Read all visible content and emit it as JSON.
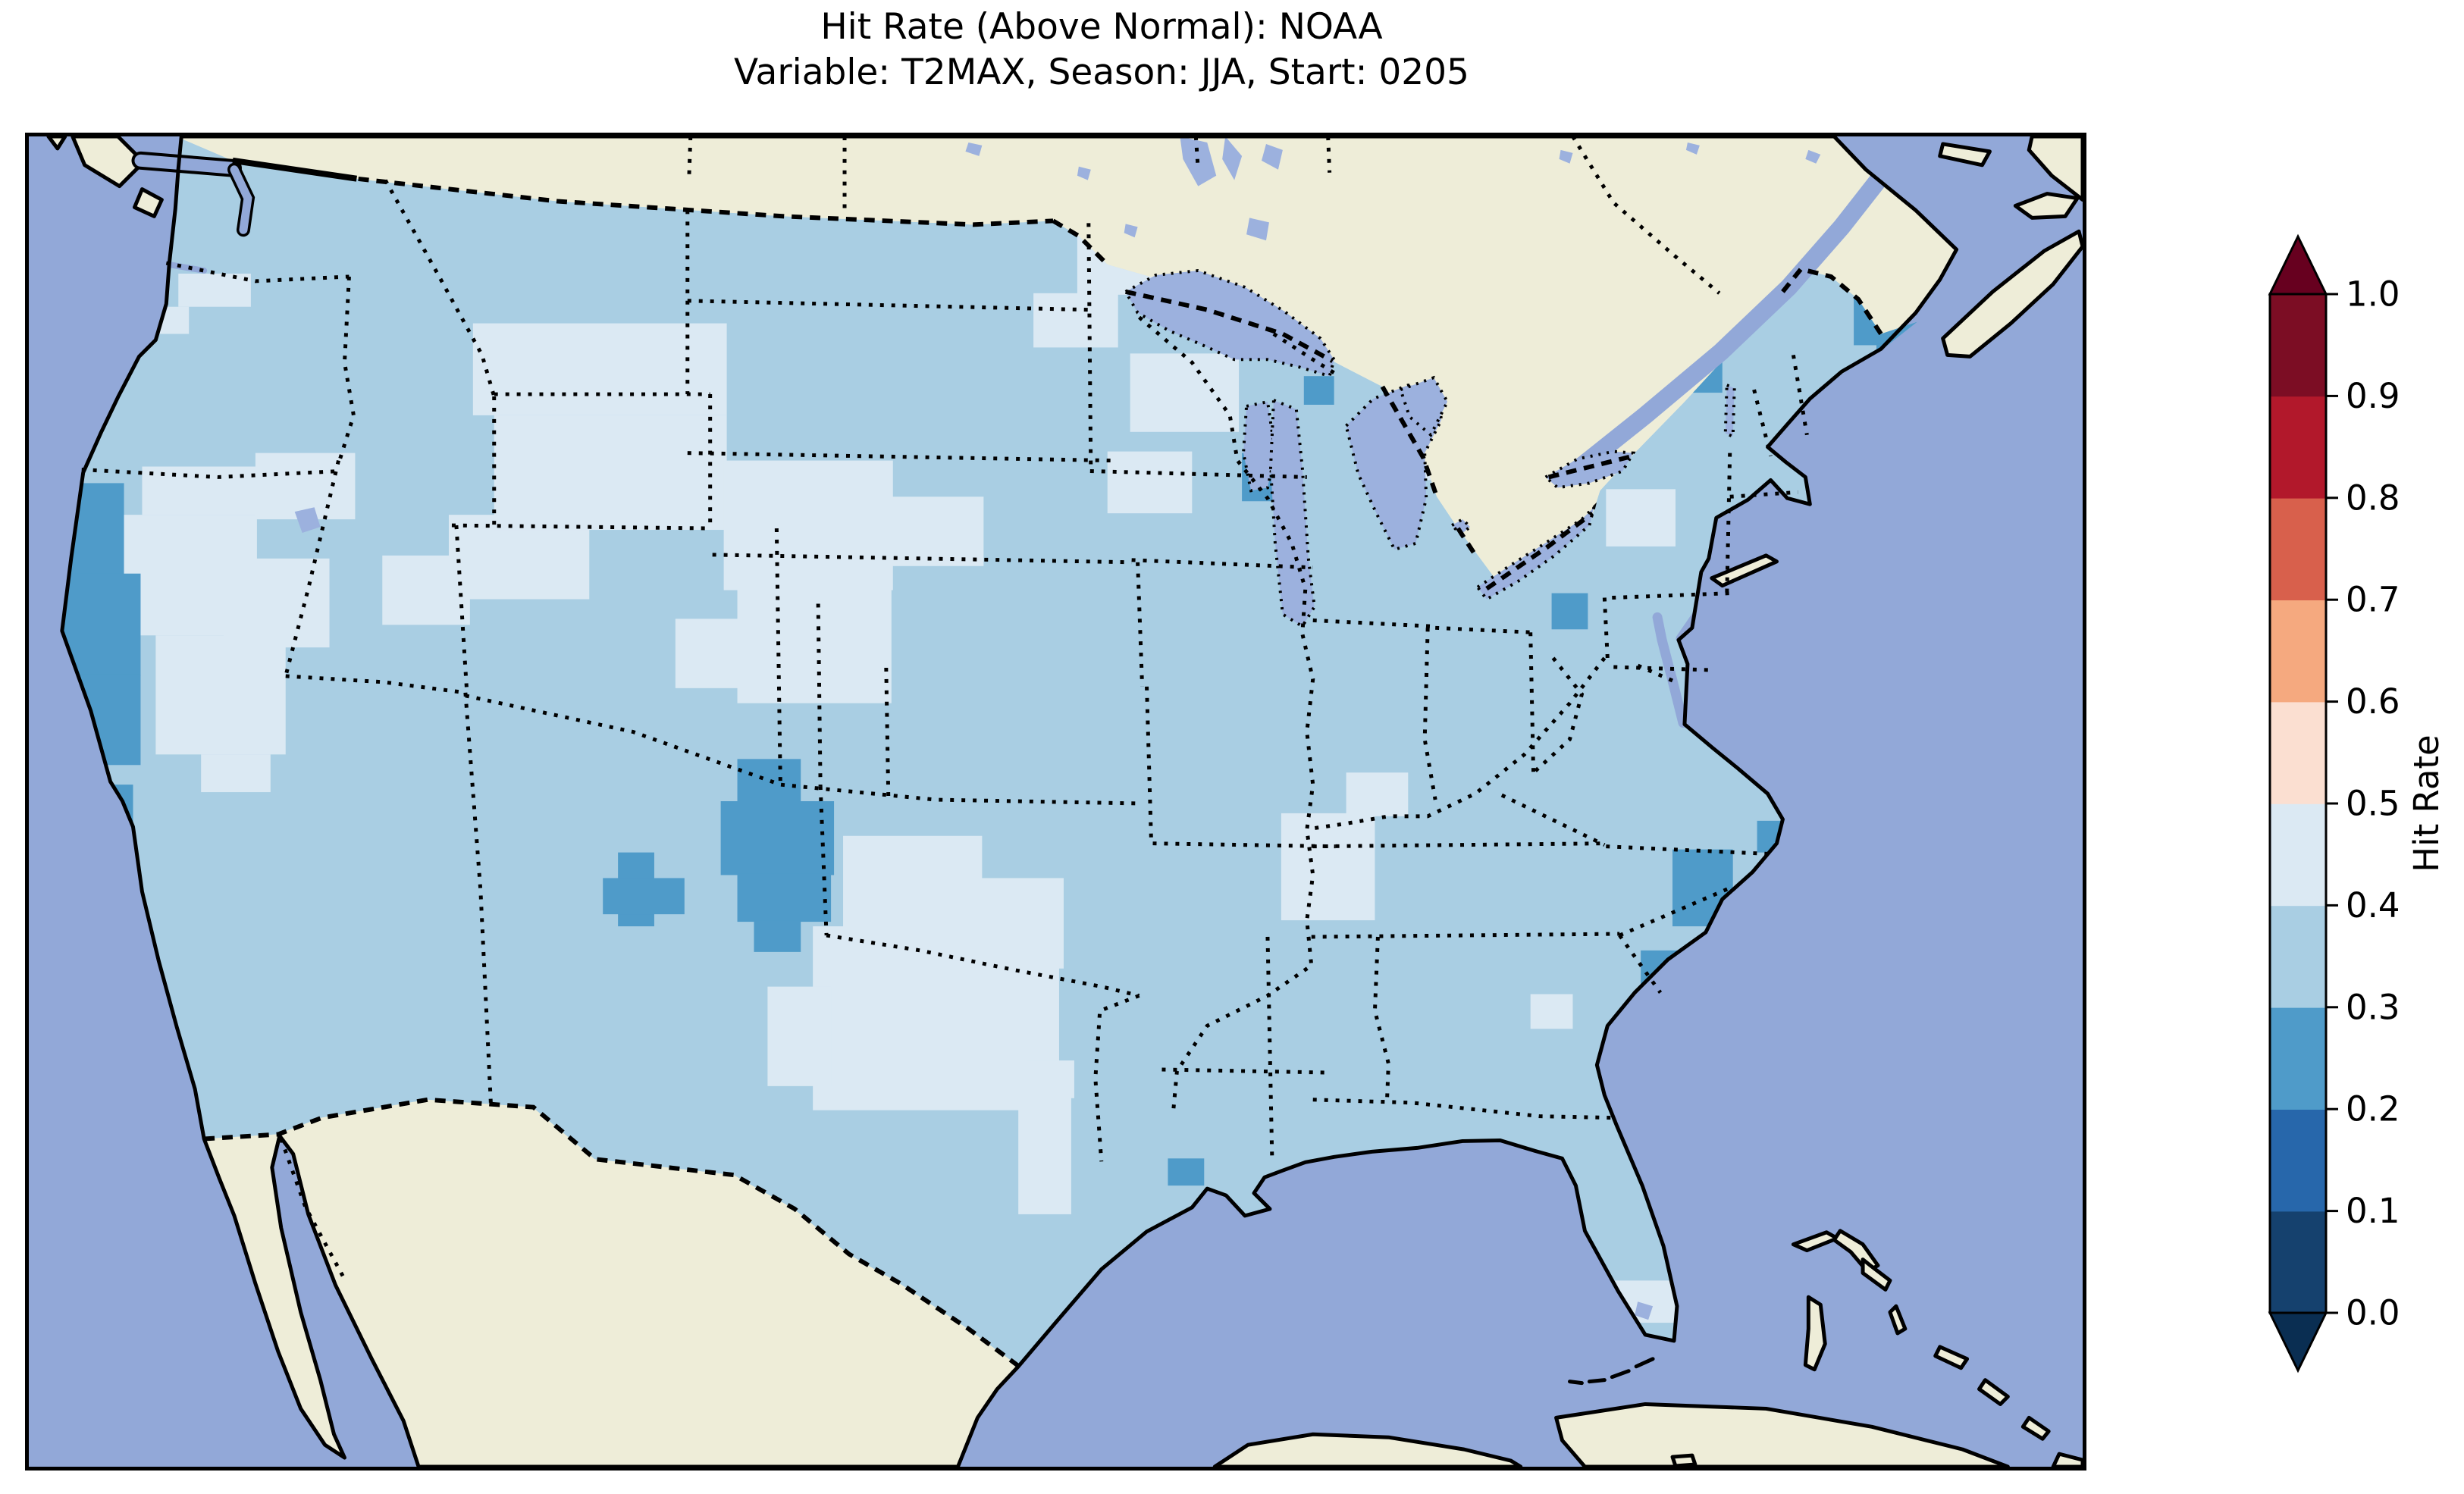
{
  "title": {
    "line1": "Hit Rate (Above Normal): NOAA",
    "line2": "Variable: T2MAX, Season: JJA, Start: 0205"
  },
  "colorbar": {
    "label": "Hit Rate",
    "orientation": "vertical",
    "extend": "both",
    "ticks": [
      "0.0",
      "0.1",
      "0.2",
      "0.3",
      "0.4",
      "0.5",
      "0.6",
      "0.7",
      "0.8",
      "0.9",
      "1.0"
    ],
    "bins_bottom_to_top": [
      {
        "range": "0.0-0.1",
        "color": "#15416e"
      },
      {
        "range": "0.1-0.2",
        "color": "#2767ab"
      },
      {
        "range": "0.2-0.3",
        "color": "#4f9bc9"
      },
      {
        "range": "0.3-0.4",
        "color": "#a9cee3"
      },
      {
        "range": "0.4-0.5",
        "color": "#dbe9f3"
      },
      {
        "range": "0.5-0.6",
        "color": "#fbdfd1"
      },
      {
        "range": "0.6-0.7",
        "color": "#f5a97f"
      },
      {
        "range": "0.7-0.8",
        "color": "#d8604c"
      },
      {
        "range": "0.8-0.9",
        "color": "#b2182b"
      },
      {
        "range": "0.9-1.0",
        "color": "#7c0d24"
      }
    ],
    "under_color": "#0a2e52",
    "over_color": "#67001f"
  },
  "map": {
    "colors": {
      "ocean": "#92a8d8",
      "land": "#eeedd8",
      "lake": "#9cb1de",
      "us_base": "#a9cee3",
      "coast": "#000000"
    },
    "base_bin": {
      "range": "0.3-0.4",
      "value": 0.35,
      "color": "#a9cee3"
    },
    "patches": [
      {
        "name": "washington-border-cells",
        "range": "0.4-0.5",
        "value": 0.45,
        "color": "#dbe9f3",
        "rects": [
          [
            198,
            182,
            96,
            44
          ],
          [
            162,
            226,
            50,
            36
          ]
        ]
      },
      {
        "name": "great-basin-nevada-utah",
        "range": "0.4-0.5",
        "value": 0.45,
        "color": "#dbe9f3",
        "rects": [
          [
            150,
            438,
            160,
            64
          ],
          [
            118,
            502,
            184,
            160
          ],
          [
            168,
            662,
            172,
            158
          ],
          [
            258,
            560,
            140,
            118
          ],
          [
            300,
            420,
            132,
            88
          ],
          [
            468,
            556,
            116,
            92
          ],
          [
            556,
            502,
            186,
            112
          ],
          [
            228,
            820,
            92,
            50
          ]
        ]
      },
      {
        "name": "northern-plains-montana-wyoming",
        "range": "0.4-0.5",
        "value": 0.45,
        "color": "#dbe9f3",
        "rects": [
          [
            588,
            248,
            336,
            122
          ],
          [
            616,
            370,
            308,
            152
          ],
          [
            920,
            430,
            224,
            172
          ],
          [
            1142,
            478,
            122,
            92
          ],
          [
            938,
            600,
            204,
            152
          ],
          [
            856,
            640,
            126,
            92
          ]
        ]
      },
      {
        "name": "dakotas-minnesota",
        "range": "0.4-0.5",
        "value": 0.45,
        "color": "#dbe9f3",
        "rects": [
          [
            1388,
            122,
            204,
            88
          ],
          [
            1330,
            208,
            112,
            72
          ],
          [
            1458,
            288,
            144,
            104
          ],
          [
            1428,
            418,
            112,
            82
          ]
        ]
      },
      {
        "name": "wisconsin",
        "range": "0.4-0.5",
        "value": 0.45,
        "color": "#dbe9f3",
        "rects": [
          [
            1878,
            328,
            142,
            112
          ],
          [
            1828,
            394,
            72,
            62
          ]
        ]
      },
      {
        "name": "michigan",
        "range": "0.4-0.5",
        "value": 0.45,
        "color": "#dbe9f3",
        "rects": [
          [
            1988,
            348,
            104,
            92
          ]
        ]
      },
      {
        "name": "texas",
        "range": "0.4-0.5",
        "value": 0.45,
        "color": "#dbe9f3",
        "rects": [
          [
            1078,
            928,
            184,
            122
          ],
          [
            1038,
            1048,
            326,
            244
          ],
          [
            978,
            1128,
            84,
            132
          ],
          [
            1198,
            984,
            172,
            120
          ],
          [
            1310,
            1230,
            70,
            200
          ],
          [
            1320,
            1226,
            64,
            50
          ]
        ]
      },
      {
        "name": "missouri-kentucky",
        "range": "0.4-0.5",
        "value": 0.45,
        "color": "#dbe9f3",
        "rects": [
          [
            1658,
            898,
            124,
            142
          ],
          [
            1744,
            844,
            82,
            58
          ]
        ]
      },
      {
        "name": "adirondacks-newyork",
        "range": "0.4-0.5",
        "value": 0.45,
        "color": "#dbe9f3",
        "rects": [
          [
            2088,
            468,
            92,
            76
          ]
        ]
      },
      {
        "name": "south-florida",
        "range": "0.4-0.5",
        "value": 0.45,
        "color": "#dbe9f3",
        "rects": [
          [
            2092,
            1518,
            92,
            56
          ],
          [
            2048,
            1578,
            52,
            36
          ]
        ]
      },
      {
        "name": "georgia-cell",
        "range": "0.4-0.5",
        "value": 0.45,
        "color": "#dbe9f3",
        "rects": [
          [
            1988,
            1138,
            56,
            46
          ]
        ]
      },
      {
        "name": "north-california-coast",
        "range": "0.2-0.3",
        "value": 0.25,
        "color": "#4f9bc9",
        "rects": [
          [
            52,
            460,
            74,
            122
          ],
          [
            46,
            580,
            102,
            136
          ],
          [
            58,
            714,
            90,
            120
          ]
        ]
      },
      {
        "name": "central-california-coast",
        "range": "0.2-0.3",
        "value": 0.25,
        "color": "#4f9bc9",
        "rects": [
          [
            80,
            860,
            58,
            98
          ]
        ]
      },
      {
        "name": "colorado-newmexico-border",
        "range": "0.2-0.3",
        "value": 0.25,
        "color": "#4f9bc9",
        "rects": [
          [
            938,
            826,
            84,
            58
          ],
          [
            916,
            882,
            150,
            98
          ],
          [
            938,
            978,
            124,
            64
          ],
          [
            960,
            1040,
            62,
            42
          ]
        ]
      },
      {
        "name": "newmexico-cross",
        "range": "0.2-0.3",
        "value": 0.25,
        "color": "#4f9bc9",
        "rects": [
          [
            780,
            950,
            48,
            98
          ],
          [
            760,
            984,
            108,
            48
          ]
        ]
      },
      {
        "name": "lake-michigan-shore",
        "range": "0.2-0.3",
        "value": 0.25,
        "color": "#4f9bc9",
        "rects": [
          [
            1606,
            420,
            42,
            64
          ],
          [
            1688,
            318,
            40,
            38
          ]
        ]
      },
      {
        "name": "maine",
        "range": "0.2-0.3",
        "value": 0.25,
        "color": "#4f9bc9",
        "rects": [
          [
            2436,
            163,
            64,
            54
          ],
          [
            2416,
            213,
            110,
            64
          ],
          [
            2446,
            275,
            64,
            38
          ]
        ]
      },
      {
        "name": "vermont-newhampshire-cell",
        "range": "0.2-0.3",
        "value": 0.25,
        "color": "#4f9bc9",
        "rects": [
          [
            2196,
            296,
            46,
            44
          ]
        ]
      },
      {
        "name": "pennsylvania-cell",
        "range": "0.2-0.3",
        "value": 0.25,
        "color": "#4f9bc9",
        "rects": [
          [
            2016,
            606,
            48,
            48
          ]
        ]
      },
      {
        "name": "carolina-coast",
        "range": "0.2-0.3",
        "value": 0.25,
        "color": "#4f9bc9",
        "rects": [
          [
            2176,
            946,
            80,
            102
          ],
          [
            2134,
            1080,
            52,
            48
          ],
          [
            2288,
            908,
            48,
            42
          ]
        ]
      },
      {
        "name": "louisiana-coast-cell",
        "range": "0.2-0.3",
        "value": 0.25,
        "color": "#4f9bc9",
        "rects": [
          [
            1508,
            1356,
            48,
            36
          ]
        ]
      }
    ]
  },
  "chart_data": {
    "type": "heatmap",
    "title": "Hit Rate (Above Normal): NOAA — Variable: T2MAX, Season: JJA, Start: 0205",
    "legend_label": "Hit Rate",
    "value_range": [
      0.0,
      1.0
    ],
    "bin_width": 0.1,
    "note": "Gridded hit-rate over CONUS; dominant value 0.3-0.4, large 0.4-0.5 regions over Texas, the Great Basin and northern plains, and 0.2-0.3 minima over the California coast, the Colorado/New Mexico border, central Maine, the Carolina coast and the western Lake Michigan shore."
  }
}
